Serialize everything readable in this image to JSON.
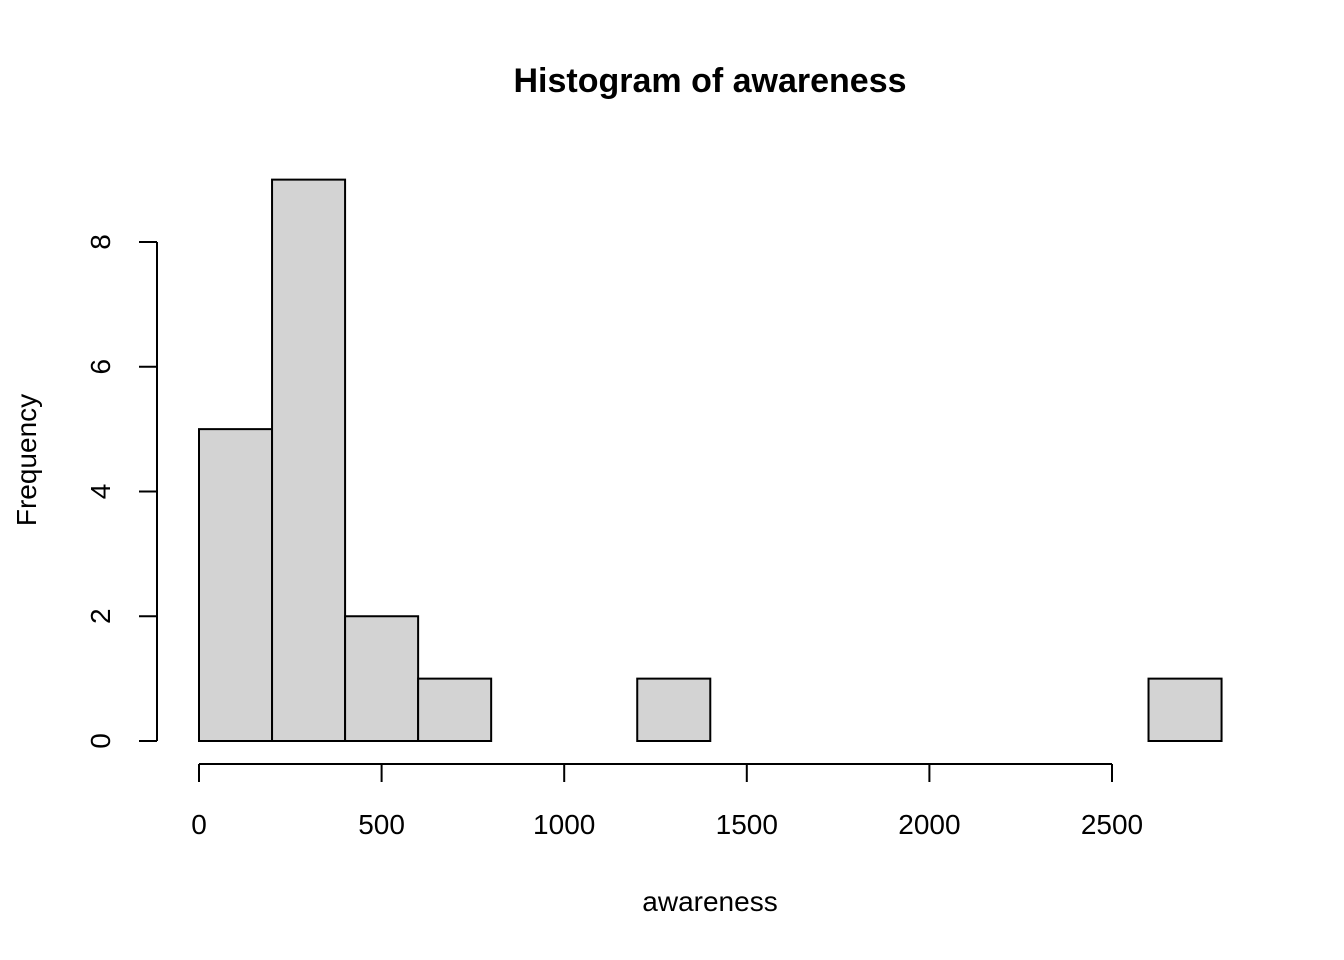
{
  "chart_data": {
    "type": "bar",
    "subtype": "histogram",
    "title": "Histogram of awareness",
    "xlabel": "awareness",
    "ylabel": "Frequency",
    "bins": [
      {
        "start": 0,
        "end": 200,
        "count": 5
      },
      {
        "start": 200,
        "end": 400,
        "count": 9
      },
      {
        "start": 400,
        "end": 600,
        "count": 2
      },
      {
        "start": 600,
        "end": 800,
        "count": 1
      },
      {
        "start": 800,
        "end": 1000,
        "count": 0
      },
      {
        "start": 1000,
        "end": 1200,
        "count": 0
      },
      {
        "start": 1200,
        "end": 1400,
        "count": 1
      },
      {
        "start": 1400,
        "end": 1600,
        "count": 0
      },
      {
        "start": 1600,
        "end": 1800,
        "count": 0
      },
      {
        "start": 1800,
        "end": 2000,
        "count": 0
      },
      {
        "start": 2000,
        "end": 2200,
        "count": 0
      },
      {
        "start": 2200,
        "end": 2400,
        "count": 0
      },
      {
        "start": 2400,
        "end": 2600,
        "count": 0
      },
      {
        "start": 2600,
        "end": 2800,
        "count": 1
      }
    ],
    "xlim": [
      0,
      2800
    ],
    "ylim": [
      0,
      9
    ],
    "x_ticks": [
      0,
      500,
      1000,
      1500,
      2000,
      2500
    ],
    "x_tick_labels": [
      "0",
      "500",
      "1000",
      "1500",
      "2000",
      "2500"
    ],
    "y_ticks": [
      0,
      2,
      4,
      6,
      8
    ],
    "y_tick_labels": [
      "0",
      "2",
      "4",
      "6",
      "8"
    ],
    "bar_fill": "#d3d3d3",
    "bar_stroke": "#000000",
    "grid": false,
    "legend": "none"
  }
}
